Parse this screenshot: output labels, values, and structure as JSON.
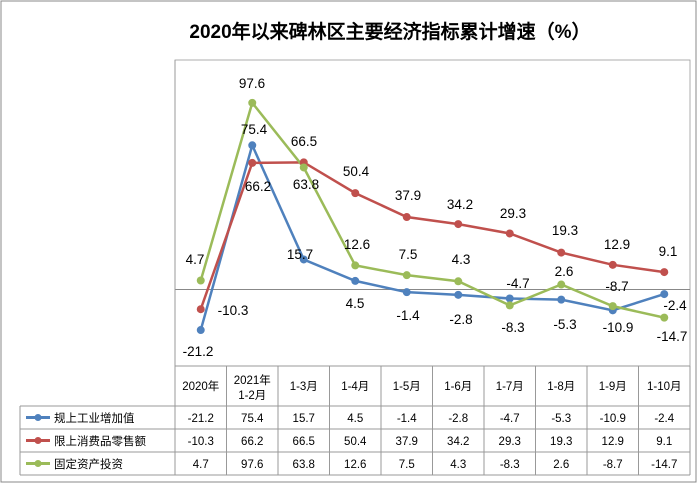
{
  "chart_data": {
    "type": "line",
    "title": "2020年以来碑林区主要经济指标累计增速（%）",
    "categories": [
      [
        "2020年"
      ],
      [
        "2021年",
        "1-2月"
      ],
      [
        "1-3月"
      ],
      [
        "1-4月"
      ],
      [
        "1-5月"
      ],
      [
        "1-6月"
      ],
      [
        "1-7月"
      ],
      [
        "1-8月"
      ],
      [
        "1-9月"
      ],
      [
        "1-10月"
      ]
    ],
    "ylim": [
      -40,
      120
    ],
    "grid": false,
    "legend": "bottom-left data table",
    "series": [
      {
        "name": "规上工业增加值",
        "color": "#4f81bd",
        "values": [
          -21.2,
          75.4,
          15.7,
          4.5,
          -1.4,
          -2.8,
          -4.7,
          -5.3,
          -10.9,
          -2.4
        ]
      },
      {
        "name": "限上消费品零售额",
        "color": "#c0504d",
        "values": [
          -10.3,
          66.2,
          66.5,
          50.4,
          37.9,
          34.2,
          29.3,
          19.3,
          12.9,
          9.1
        ]
      },
      {
        "name": "固定资产投资",
        "color": "#9bbb59",
        "values": [
          4.7,
          97.6,
          63.8,
          12.6,
          7.5,
          4.3,
          -8.3,
          2.6,
          -8.7,
          -14.7
        ]
      }
    ]
  }
}
